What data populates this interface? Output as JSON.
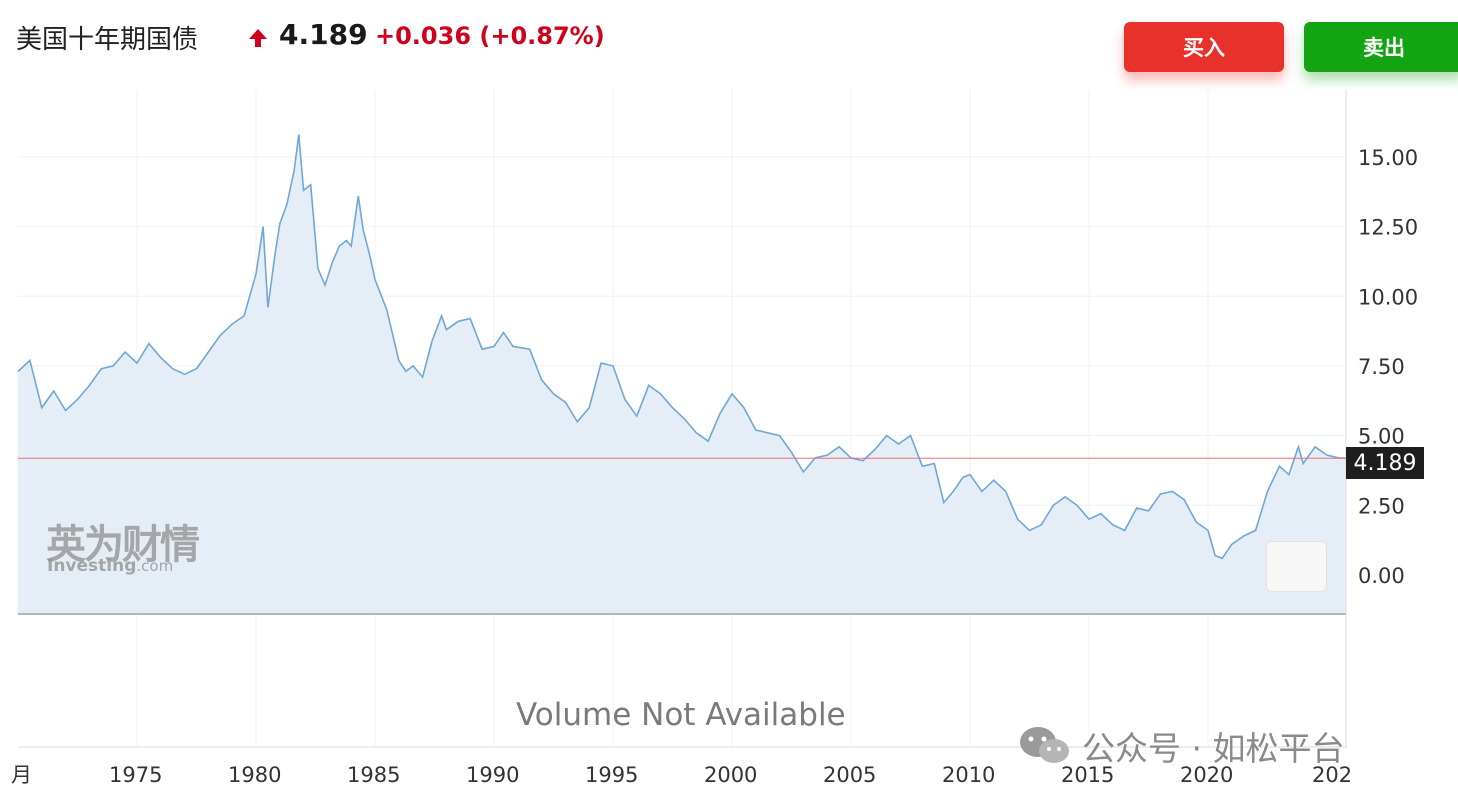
{
  "header": {
    "title": "美国十年期国债",
    "price": "4.189",
    "change": "+0.036 (+0.87%)",
    "direction_icon": "up-arrow-icon",
    "buy_label": "买入",
    "sell_label": "卖出"
  },
  "colors": {
    "up": "#d0021b",
    "buy_button": "#e8312a",
    "sell_button": "#12a412",
    "line": "#6fa8d6",
    "area_fill": "#e5eef6",
    "last_price_line": "#e57373"
  },
  "watermark": {
    "cn": "英为财情",
    "en_main": "Investing",
    "en_suffix": ".com"
  },
  "volume_text": "Volume Not Available",
  "last_price_label": "4.189",
  "footer": {
    "account_icon": "wechat-icon",
    "account_text": "公众号 · 如松平台"
  },
  "chart_data": {
    "type": "area",
    "title": "",
    "xlabel": "",
    "ylabel": "",
    "x_tick_labels": [
      "月",
      "1975",
      "1980",
      "1985",
      "1990",
      "1995",
      "2000",
      "2005",
      "2010",
      "2015",
      "2020",
      "202"
    ],
    "y_tick_labels": [
      "15.00",
      "12.50",
      "10.00",
      "7.50",
      "5.00",
      "2.50",
      "0.00"
    ],
    "ylim": [
      -1.4,
      17.4
    ],
    "xlim": [
      1970,
      2025.8
    ],
    "grid": true,
    "last_value": 4.189,
    "series": [
      {
        "x": [
          1970.0,
          1970.5,
          1971.0,
          1971.5,
          1972.0,
          1972.5,
          1973.0,
          1973.5,
          1974.0,
          1974.5,
          1975.0,
          1975.5,
          1976.0,
          1976.5,
          1977.0,
          1977.5,
          1978.0,
          1978.5,
          1979.0,
          1979.5,
          1980.0,
          1980.3,
          1980.5,
          1980.8,
          1981.0,
          1981.3,
          1981.6,
          1981.8,
          1982.0,
          1982.3,
          1982.6,
          1982.9,
          1983.2,
          1983.5,
          1983.8,
          1984.0,
          1984.3,
          1984.5,
          1984.8,
          1985.0,
          1985.5,
          1986.0,
          1986.3,
          1986.6,
          1987.0,
          1987.4,
          1987.8,
          1988.0,
          1988.5,
          1989.0,
          1989.5,
          1990.0,
          1990.4,
          1990.8,
          1991.5,
          1992.0,
          1992.5,
          1993.0,
          1993.5,
          1994.0,
          1994.5,
          1995.0,
          1995.5,
          1996.0,
          1996.5,
          1997.0,
          1997.5,
          1998.0,
          1998.5,
          1999.0,
          1999.5,
          2000.0,
          2000.5,
          2001.0,
          2001.5,
          2002.0,
          2002.5,
          2003.0,
          2003.5,
          2004.0,
          2004.5,
          2005.0,
          2005.5,
          2006.0,
          2006.5,
          2007.0,
          2007.5,
          2008.0,
          2008.5,
          2008.9,
          2009.3,
          2009.7,
          2010.0,
          2010.5,
          2011.0,
          2011.5,
          2012.0,
          2012.5,
          2013.0,
          2013.5,
          2014.0,
          2014.5,
          2015.0,
          2015.5,
          2016.0,
          2016.5,
          2017.0,
          2017.5,
          2018.0,
          2018.5,
          2019.0,
          2019.5,
          2020.0,
          2020.3,
          2020.6,
          2021.0,
          2021.5,
          2022.0,
          2022.5,
          2023.0,
          2023.4,
          2023.8,
          2024.0,
          2024.5,
          2025.0,
          2025.5,
          2025.8
        ],
        "values": [
          7.3,
          7.7,
          6.0,
          6.6,
          5.9,
          6.3,
          6.8,
          7.4,
          7.5,
          8.0,
          7.6,
          8.3,
          7.8,
          7.4,
          7.2,
          7.4,
          8.0,
          8.6,
          9.0,
          9.3,
          10.8,
          12.5,
          9.6,
          11.5,
          12.6,
          13.3,
          14.5,
          15.8,
          13.8,
          14.0,
          11.0,
          10.4,
          11.2,
          11.8,
          12.0,
          11.8,
          13.6,
          12.4,
          11.4,
          10.6,
          9.5,
          7.7,
          7.3,
          7.5,
          7.1,
          8.4,
          9.3,
          8.8,
          9.1,
          9.2,
          8.1,
          8.2,
          8.7,
          8.2,
          8.1,
          7.0,
          6.5,
          6.2,
          5.5,
          6.0,
          7.6,
          7.5,
          6.3,
          5.7,
          6.8,
          6.5,
          6.0,
          5.6,
          5.1,
          4.8,
          5.8,
          6.5,
          6.0,
          5.2,
          5.1,
          5.0,
          4.4,
          3.7,
          4.2,
          4.3,
          4.6,
          4.2,
          4.1,
          4.5,
          5.0,
          4.7,
          5.0,
          3.9,
          4.0,
          2.6,
          3.0,
          3.5,
          3.6,
          3.0,
          3.4,
          3.0,
          2.0,
          1.6,
          1.8,
          2.5,
          2.8,
          2.5,
          2.0,
          2.2,
          1.8,
          1.6,
          2.4,
          2.3,
          2.9,
          3.0,
          2.7,
          1.9,
          1.6,
          0.7,
          0.6,
          1.1,
          1.4,
          1.6,
          3.0,
          3.9,
          3.6,
          4.6,
          4.0,
          4.6,
          4.3,
          4.2,
          4.189
        ]
      }
    ]
  }
}
